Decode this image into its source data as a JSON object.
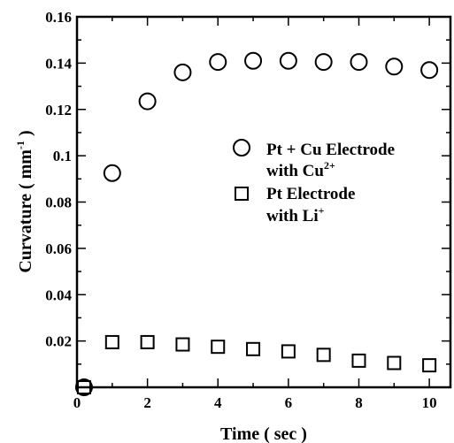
{
  "chart_data": {
    "type": "scatter",
    "xlabel": "Time ( sec )",
    "ylabel_main": "Curvature ( mm",
    "ylabel_sup": "-1",
    "ylabel_end": " )",
    "xlim": [
      0,
      10.6
    ],
    "ylim": [
      0,
      0.16
    ],
    "x_ticks": [
      0,
      2,
      4,
      6,
      8,
      10
    ],
    "x_tick_labels": [
      "0",
      "2",
      "4",
      "6",
      "8",
      "10"
    ],
    "y_ticks": [
      0.02,
      0.04,
      0.06,
      0.08,
      0.1,
      0.12,
      0.14,
      0.16
    ],
    "y_tick_labels": [
      "0.02",
      "0.04",
      "0.06",
      "0.08",
      "0.1",
      "0.12",
      "0.14",
      "0.16"
    ],
    "grid": false,
    "legend_position": "upper-right",
    "series": [
      {
        "marker": "circle",
        "legend_line1": "Pt + Cu Electrode",
        "legend_line2_main": "with Cu",
        "legend_line2_sup": "2+",
        "x": [
          0.2,
          1,
          2,
          3,
          4,
          5,
          6,
          7,
          8,
          9,
          10
        ],
        "y": [
          0.0,
          0.0925,
          0.1235,
          0.136,
          0.1405,
          0.141,
          0.141,
          0.1405,
          0.1405,
          0.1385,
          0.137
        ]
      },
      {
        "marker": "square",
        "legend_line1": "Pt Electrode",
        "legend_line2_main": "with Li",
        "legend_line2_sup": "+",
        "x": [
          0.2,
          1,
          2,
          3,
          4,
          5,
          6,
          7,
          8,
          9,
          10
        ],
        "y": [
          0.0,
          0.0195,
          0.0195,
          0.0185,
          0.0175,
          0.0165,
          0.0155,
          0.014,
          0.0115,
          0.0105,
          0.0095
        ]
      }
    ]
  }
}
